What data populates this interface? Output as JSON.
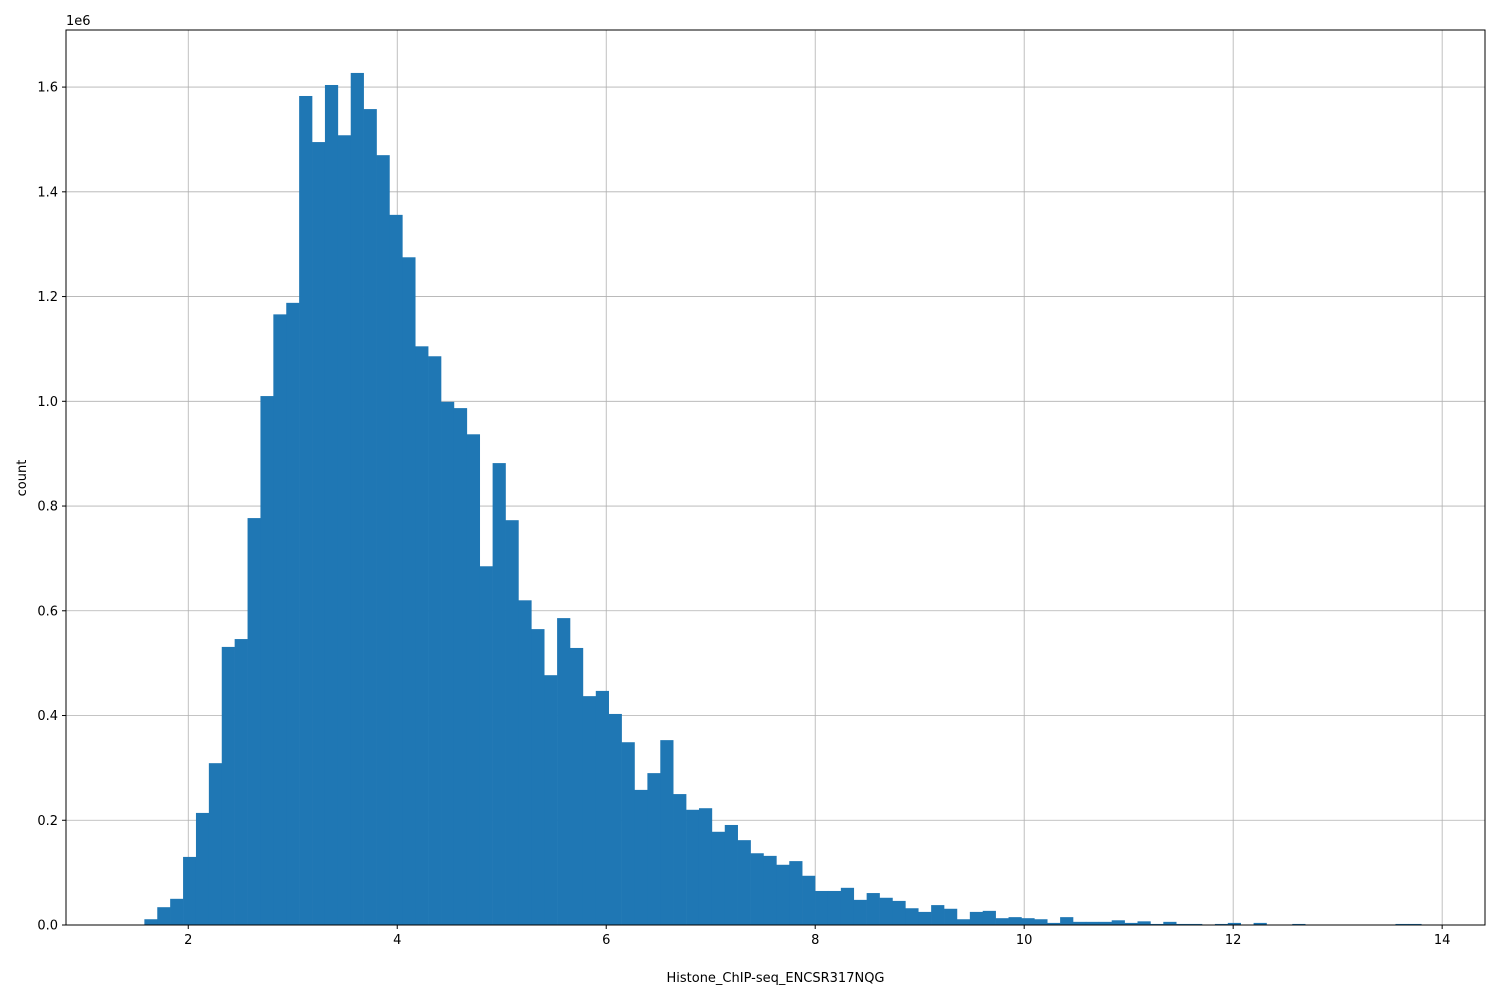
{
  "chart_data": {
    "type": "bar",
    "subtype": "histogram",
    "title": "",
    "xlabel": "Histone_ChIP-seq_ENCSR317NQG",
    "ylabel": "count",
    "y_offset_label": "1e6",
    "xlim": [
      0.83,
      14.41
    ],
    "ylim": [
      0,
      1709000
    ],
    "grid": true,
    "bar_color": "#1f77b4",
    "x_ticks": [
      2,
      4,
      6,
      8,
      10,
      12,
      14
    ],
    "x_tick_labels": [
      "2",
      "4",
      "6",
      "8",
      "10",
      "12",
      "14"
    ],
    "y_ticks": [
      0,
      200000,
      400000,
      600000,
      800000,
      1000000,
      1200000,
      1400000,
      1600000
    ],
    "y_tick_labels": [
      "0.0",
      "0.2",
      "0.4",
      "0.6",
      "0.8",
      "1.0",
      "1.2",
      "1.4",
      "1.6"
    ],
    "bin_start": 1.58,
    "bin_end": 13.8,
    "counts": [
      11000,
      34000,
      50000,
      130000,
      214000,
      309000,
      531000,
      546000,
      777000,
      1010000,
      1166000,
      1188000,
      1583000,
      1495000,
      1604000,
      1508000,
      1627000,
      1558000,
      1470000,
      1356000,
      1275000,
      1105000,
      1086000,
      999000,
      987000,
      937000,
      685000,
      882000,
      773000,
      620000,
      565000,
      477000,
      586000,
      529000,
      437000,
      447000,
      403000,
      349000,
      258000,
      290000,
      353000,
      250000,
      220000,
      223000,
      178000,
      191000,
      162000,
      137000,
      132000,
      115000,
      122000,
      94000,
      65000,
      65000,
      71000,
      48000,
      61000,
      52000,
      46000,
      32000,
      25000,
      38000,
      31000,
      11000,
      25000,
      27000,
      13000,
      15000,
      13000,
      11000,
      4000,
      15000,
      6000,
      6000,
      6000,
      9000,
      4000,
      7000,
      2000,
      6000,
      2000,
      2000,
      0,
      2000,
      4000,
      0,
      4000,
      0,
      0,
      2000,
      0,
      0,
      0,
      0,
      0,
      0,
      0,
      2000,
      2000
    ]
  }
}
